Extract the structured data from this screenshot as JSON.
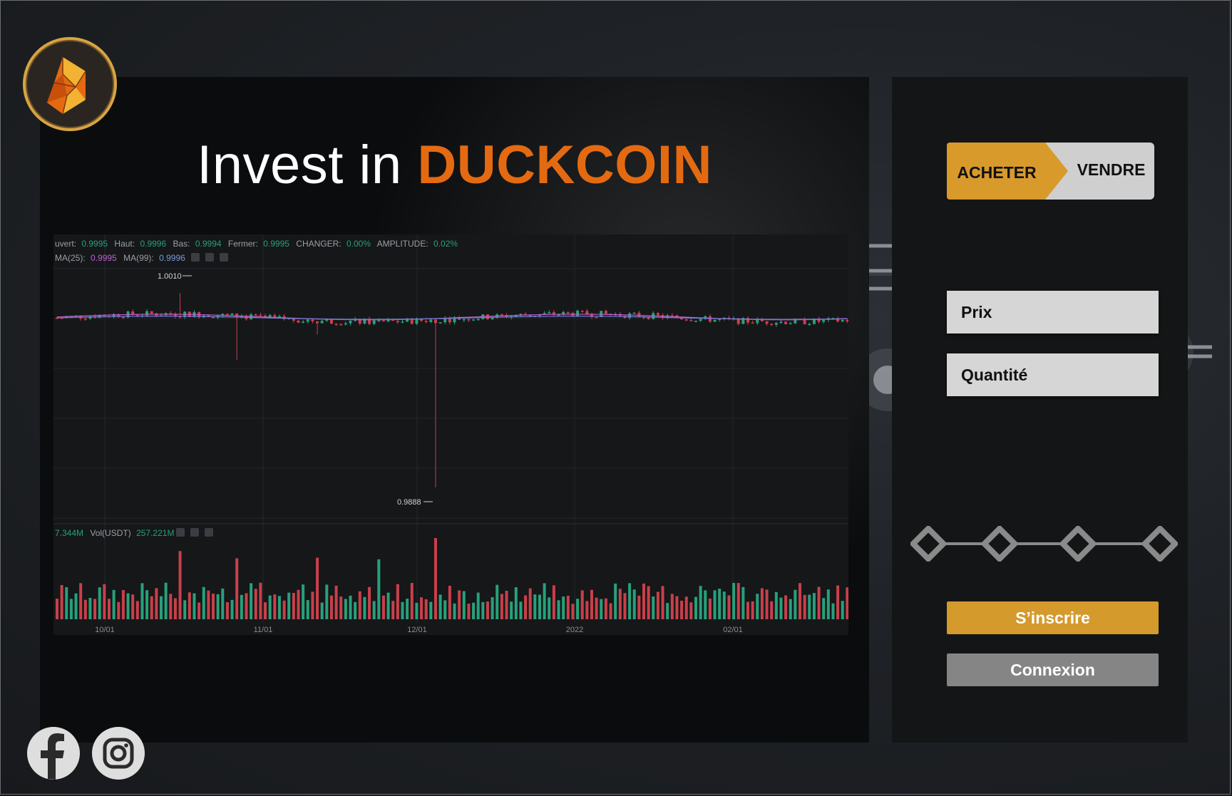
{
  "hero": {
    "prefix": "Invest in",
    "brand": "DUCKCOIN"
  },
  "logo": {
    "icon": "duckcoin-logo-icon",
    "ring_color": "#d8a442",
    "fill_colors": [
      "#e46a12",
      "#f2b233"
    ]
  },
  "trade": {
    "buy_label": "ACHETER",
    "sell_label": "VENDRE",
    "price_placeholder": "Prix",
    "quantity_placeholder": "Quantité",
    "stepper_steps": 4,
    "signup_label": "S’inscrire",
    "login_label": "Connexion"
  },
  "colors": {
    "accent": "#d89a2b",
    "brand": "#e46a12",
    "up": "#26a17b",
    "down": "#c9404a",
    "ma25": "#c060d0",
    "ma99": "#7a7ad8"
  },
  "chart_data": {
    "type": "candlestick",
    "stats_line": {
      "ouvert_label": "uvert:",
      "ouvert": "0.9995",
      "haut_label": "Haut:",
      "haut": "0.9996",
      "bas_label": "Bas:",
      "bas": "0.9994",
      "fermer_label": "Fermer:",
      "fermer": "0.9995",
      "changer_label": "CHANGER:",
      "changer": "0.00%",
      "amplitude_label": "AMPLITUDE:",
      "amplitude": "0.02%"
    },
    "ma_line": {
      "ma25_label": "MA(25):",
      "ma25": "0.9995",
      "ma99_label": "MA(99):",
      "ma99": "0.9996"
    },
    "high_label": "1.0010",
    "low_label": "0.9888",
    "volume_line": {
      "prefix": "7.344M",
      "label": "Vol(USDT)",
      "value": "257.221M"
    },
    "x_ticks": [
      "10/01",
      "11/01",
      "12/01",
      "2022",
      "02/01"
    ],
    "price_range": [
      0.987,
      1.002
    ],
    "high": 1.001,
    "low": 0.9888
  },
  "social": [
    {
      "name": "facebook",
      "icon": "facebook-icon"
    },
    {
      "name": "instagram",
      "icon": "instagram-icon"
    }
  ]
}
